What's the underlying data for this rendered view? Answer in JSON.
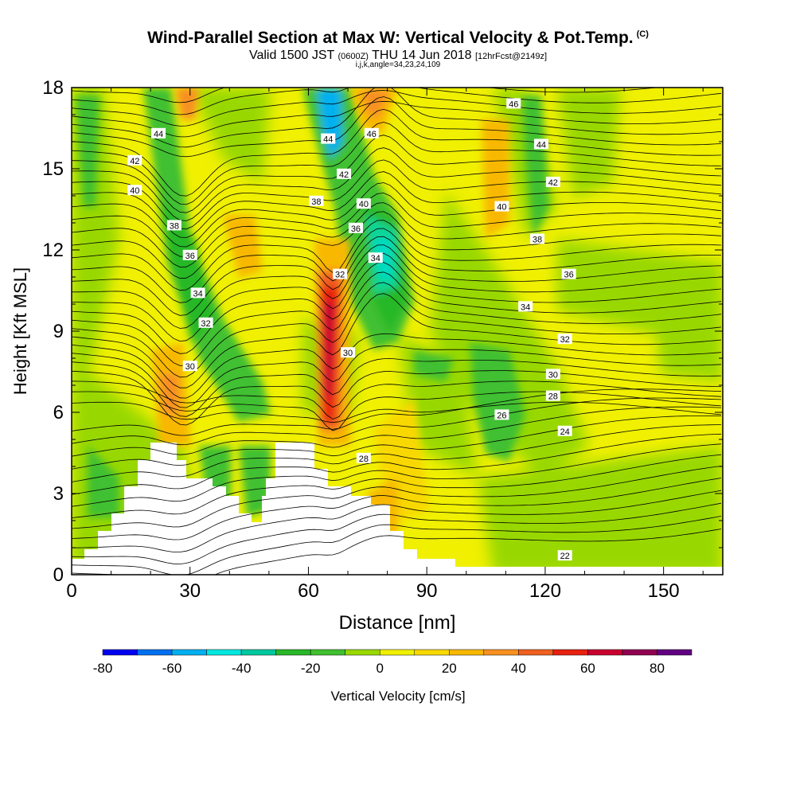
{
  "title": {
    "main": "Wind-Parallel Section at Max W: Vertical Velocity & Pot.Temp.",
    "copyright": "(C)",
    "valid_prefix": "Valid 1500 JST",
    "valid_zulu": "(0600Z)",
    "valid_date": "THU 14 Jun 2018",
    "forecast": "[12hrFcst@2149z]",
    "indices": "i,j,k,angle=34,23,24,109"
  },
  "chart_data": {
    "type": "heatmap",
    "xlabel": "Distance [nm]",
    "ylabel": "Height [Kft MSL]",
    "xlim": [
      0,
      165
    ],
    "ylim": [
      0,
      18
    ],
    "xticks": [
      0,
      30,
      60,
      90,
      120,
      150
    ],
    "yticks": [
      0,
      3,
      6,
      9,
      12,
      15,
      18
    ],
    "colorbar": {
      "label": "Vertical Velocity [cm/s]",
      "ticks": [
        -80,
        -60,
        -40,
        -20,
        0,
        20,
        40,
        60,
        80
      ],
      "levels": [
        -80,
        -70,
        -60,
        -50,
        -40,
        -30,
        -20,
        -10,
        0,
        10,
        20,
        30,
        40,
        50,
        60,
        70,
        80,
        90
      ],
      "colors": [
        "#0000f0",
        "#0070f0",
        "#00b0f0",
        "#00e8e0",
        "#00c8a0",
        "#28b828",
        "#40c030",
        "#98d800",
        "#f0f000",
        "#f8d800",
        "#f8b800",
        "#f89020",
        "#f06020",
        "#e82010",
        "#c80030",
        "#900050",
        "#600080"
      ]
    },
    "theta_contour_labels": [
      {
        "value": "22",
        "x": 125,
        "y": 0.7
      },
      {
        "value": "24",
        "x": 125,
        "y": 5.3
      },
      {
        "value": "26",
        "x": 109,
        "y": 5.9
      },
      {
        "value": "28",
        "x": 74,
        "y": 4.3
      },
      {
        "value": "28",
        "x": 122,
        "y": 6.6
      },
      {
        "value": "30",
        "x": 30,
        "y": 7.7
      },
      {
        "value": "30",
        "x": 70,
        "y": 8.2
      },
      {
        "value": "30",
        "x": 122,
        "y": 7.4
      },
      {
        "value": "32",
        "x": 34,
        "y": 9.3
      },
      {
        "value": "32",
        "x": 68,
        "y": 11.1
      },
      {
        "value": "32",
        "x": 125,
        "y": 8.7
      },
      {
        "value": "34",
        "x": 32,
        "y": 10.4
      },
      {
        "value": "34",
        "x": 77,
        "y": 11.7
      },
      {
        "value": "34",
        "x": 115,
        "y": 9.9
      },
      {
        "value": "36",
        "x": 30,
        "y": 11.8
      },
      {
        "value": "36",
        "x": 72,
        "y": 12.8
      },
      {
        "value": "36",
        "x": 126,
        "y": 11.1
      },
      {
        "value": "38",
        "x": 26,
        "y": 12.9
      },
      {
        "value": "38",
        "x": 62,
        "y": 13.8
      },
      {
        "value": "38",
        "x": 118,
        "y": 12.4
      },
      {
        "value": "40",
        "x": 16,
        "y": 14.2
      },
      {
        "value": "40",
        "x": 74,
        "y": 13.7
      },
      {
        "value": "40",
        "x": 109,
        "y": 13.6
      },
      {
        "value": "42",
        "x": 16,
        "y": 15.3
      },
      {
        "value": "42",
        "x": 69,
        "y": 14.8
      },
      {
        "value": "42",
        "x": 122,
        "y": 14.5
      },
      {
        "value": "44",
        "x": 22,
        "y": 16.3
      },
      {
        "value": "44",
        "x": 65,
        "y": 16.1
      },
      {
        "value": "44",
        "x": 119,
        "y": 15.9
      },
      {
        "value": "46",
        "x": 76,
        "y": 16.3
      },
      {
        "value": "46",
        "x": 112,
        "y": 17.4
      }
    ]
  }
}
